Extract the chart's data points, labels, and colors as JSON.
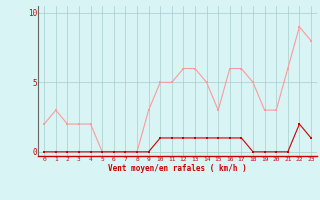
{
  "xlabel": "Vent moyen/en rafales ( km/h )",
  "x_values": [
    0,
    1,
    2,
    3,
    4,
    5,
    6,
    7,
    8,
    9,
    10,
    11,
    12,
    13,
    14,
    15,
    16,
    17,
    18,
    19,
    20,
    21,
    22,
    23
  ],
  "vent_moyen": [
    0,
    0,
    0,
    0,
    0,
    0,
    0,
    0,
    0,
    0,
    1,
    1,
    1,
    1,
    1,
    1,
    1,
    1,
    0,
    0,
    0,
    0,
    2,
    1
  ],
  "rafales": [
    2,
    3,
    2,
    2,
    2,
    0,
    0,
    0,
    0,
    3,
    5,
    5,
    6,
    6,
    5,
    3,
    6,
    6,
    5,
    3,
    3,
    6,
    9,
    8
  ],
  "color_moyen": "#cc0000",
  "color_rafales": "#ff9999",
  "bg_color": "#d8f4f4",
  "grid_color": "#aacccc",
  "ylim": [
    -0.3,
    10.5
  ],
  "yticks": [
    0,
    5,
    10
  ],
  "ytick_labels": [
    "0",
    "5",
    "10"
  ],
  "xlim": [
    -0.5,
    23.5
  ],
  "marker_size": 2.0,
  "linewidth": 0.8
}
